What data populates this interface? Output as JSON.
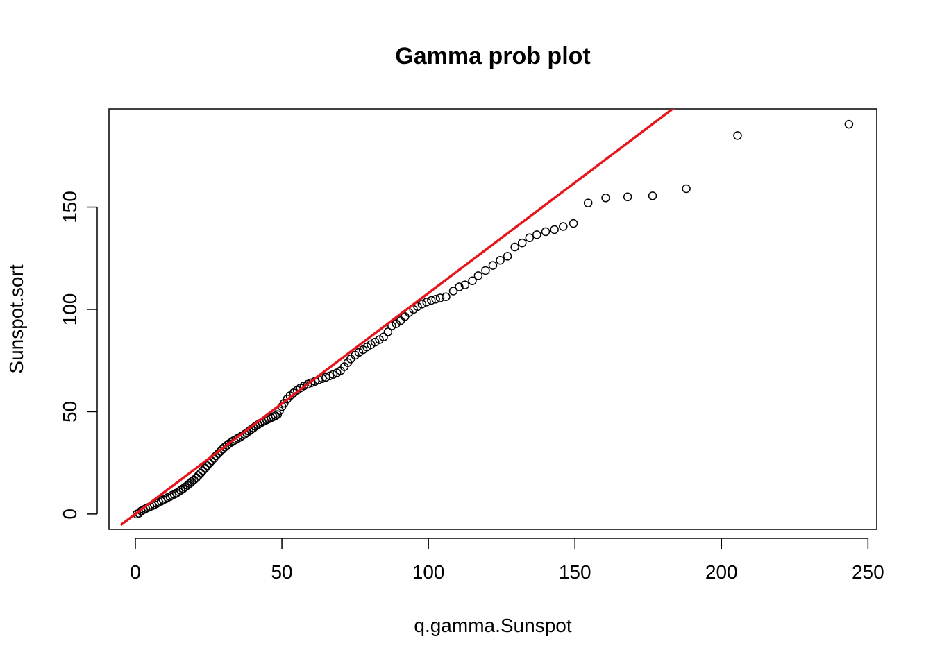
{
  "chart_data": {
    "type": "scatter",
    "title": "Gamma prob plot",
    "xlabel": "q.gamma.Sunspot",
    "ylabel": "Sunspot.sort",
    "xlim": [
      -9,
      253
    ],
    "ylim": [
      -7.5,
      198
    ],
    "x_ticks": [
      0,
      50,
      100,
      150,
      200,
      250
    ],
    "y_ticks": [
      0,
      50,
      100,
      150
    ],
    "grid": false,
    "marker": "open-circle",
    "colors": {
      "points": "#000000",
      "fit_line": "#e8141c",
      "axes": "#000000"
    },
    "fit_line": {
      "slope": 1.08,
      "intercept": 0,
      "x_range": [
        -5,
        185
      ]
    },
    "points": [
      [
        0.5,
        0
      ],
      [
        1.2,
        0.4
      ],
      [
        2,
        1.5
      ],
      [
        2.8,
        2.1
      ],
      [
        3.5,
        2.6
      ],
      [
        4.2,
        3.1
      ],
      [
        5,
        3.6
      ],
      [
        5.8,
        4.1
      ],
      [
        6.5,
        4.6
      ],
      [
        7.3,
        5.2
      ],
      [
        8,
        5.8
      ],
      [
        8.8,
        6.3
      ],
      [
        9.5,
        6.9
      ],
      [
        10.3,
        7.4
      ],
      [
        11,
        8
      ],
      [
        11.8,
        8.5
      ],
      [
        12.5,
        9.1
      ],
      [
        13.3,
        9.6
      ],
      [
        14,
        10.2
      ],
      [
        14.8,
        10.9
      ],
      [
        15.5,
        11.6
      ],
      [
        16.3,
        12.4
      ],
      [
        17,
        13.2
      ],
      [
        17.8,
        14
      ],
      [
        18.5,
        14.9
      ],
      [
        19.2,
        15.8
      ],
      [
        20,
        16.7
      ],
      [
        20.8,
        17.7
      ],
      [
        21.5,
        18.8
      ],
      [
        22.3,
        20
      ],
      [
        23,
        21.2
      ],
      [
        23.8,
        22.4
      ],
      [
        24.5,
        23.6
      ],
      [
        25.3,
        24.8
      ],
      [
        26,
        26
      ],
      [
        26.8,
        27.2
      ],
      [
        27.5,
        28.4
      ],
      [
        28.3,
        29.5
      ],
      [
        29,
        30.6
      ],
      [
        29.8,
        31.7
      ],
      [
        30.5,
        32.7
      ],
      [
        31.3,
        33.6
      ],
      [
        32,
        34.4
      ],
      [
        32.8,
        35.1
      ],
      [
        33.5,
        35.8
      ],
      [
        34.3,
        36.4
      ],
      [
        35,
        37
      ],
      [
        35.8,
        37.6
      ],
      [
        36.5,
        38.3
      ],
      [
        37.3,
        39
      ],
      [
        38,
        39.7
      ],
      [
        38.8,
        40.5
      ],
      [
        39.5,
        41.3
      ],
      [
        40.3,
        42.1
      ],
      [
        41,
        42.9
      ],
      [
        41.8,
        43.6
      ],
      [
        42.5,
        44.3
      ],
      [
        43.3,
        44.9
      ],
      [
        44,
        45.5
      ],
      [
        44.8,
        46
      ],
      [
        45.5,
        46.5
      ],
      [
        46.3,
        47
      ],
      [
        47,
        47.5
      ],
      [
        47.8,
        48
      ],
      [
        48.5,
        48.6
      ],
      [
        49.2,
        50.5
      ],
      [
        50,
        52.5
      ],
      [
        50.8,
        54.2
      ],
      [
        51.8,
        56.2
      ],
      [
        52.8,
        57.8
      ],
      [
        54,
        59.2
      ],
      [
        55.2,
        60.5
      ],
      [
        56.3,
        61.6
      ],
      [
        57.5,
        62.6
      ],
      [
        58.8,
        63.4
      ],
      [
        60,
        64.1
      ],
      [
        61.3,
        64.8
      ],
      [
        62.5,
        65.5
      ],
      [
        63.8,
        66.2
      ],
      [
        65,
        66.8
      ],
      [
        66.3,
        67.5
      ],
      [
        67.5,
        68.2
      ],
      [
        68.8,
        69
      ],
      [
        70,
        70
      ],
      [
        71.3,
        72
      ],
      [
        72.5,
        74
      ],
      [
        73.5,
        75.8
      ],
      [
        75,
        77.6
      ],
      [
        76.3,
        79
      ],
      [
        77.7,
        80.3
      ],
      [
        79,
        81.6
      ],
      [
        80.4,
        82.8
      ],
      [
        81.8,
        84
      ],
      [
        83.3,
        85.2
      ],
      [
        84.7,
        86.5
      ],
      [
        86.2,
        89
      ],
      [
        87.5,
        92
      ],
      [
        89,
        93
      ],
      [
        90.5,
        94.5
      ],
      [
        92,
        96.5
      ],
      [
        93.4,
        98.5
      ],
      [
        94.9,
        100
      ],
      [
        96.3,
        101.4
      ],
      [
        97.8,
        102.6
      ],
      [
        99.4,
        103.6
      ],
      [
        101,
        104.4
      ],
      [
        102.5,
        105
      ],
      [
        104,
        105.6
      ],
      [
        106,
        106.2
      ],
      [
        108.5,
        109
      ],
      [
        110.5,
        111
      ],
      [
        112.5,
        112
      ],
      [
        115,
        114
      ],
      [
        117,
        116.5
      ],
      [
        119.5,
        119
      ],
      [
        122,
        121.5
      ],
      [
        124.5,
        124
      ],
      [
        127,
        126
      ],
      [
        129.5,
        130.5
      ],
      [
        132,
        132.5
      ],
      [
        134.5,
        135
      ],
      [
        137,
        136.5
      ],
      [
        140,
        138
      ],
      [
        143,
        139
      ],
      [
        146,
        140.5
      ],
      [
        149.5,
        142
      ],
      [
        154.5,
        152
      ],
      [
        160.5,
        154.5
      ],
      [
        168,
        155
      ],
      [
        176.5,
        155.5
      ],
      [
        188,
        159
      ],
      [
        205.5,
        185
      ],
      [
        243.5,
        190.5
      ]
    ]
  }
}
